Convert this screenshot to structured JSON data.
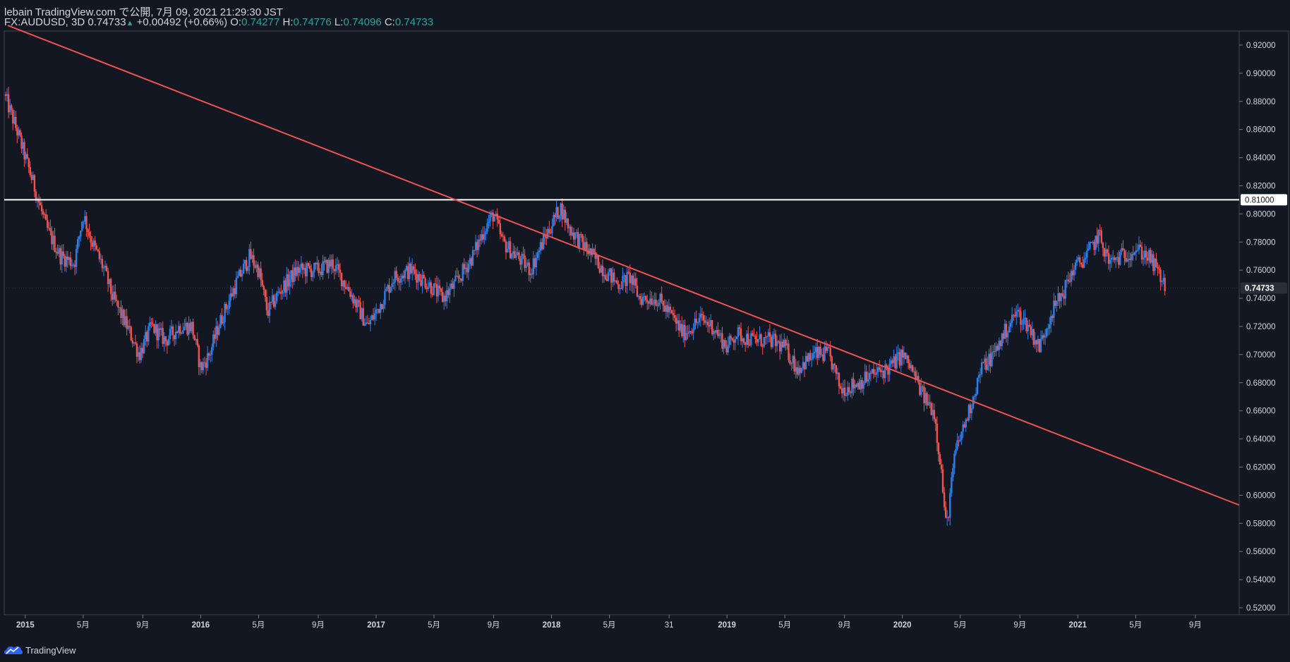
{
  "header": {
    "publisher_line": "lebain TradingView.com で公開, 7月 09, 2021 21:29:30 JST",
    "symbol": "FX:AUDUSD, 3D",
    "last": "0.74733",
    "up_arrow": "▲",
    "change": "+0.00492 (+0.66%)",
    "o_label": "O:",
    "o_value": "0.74277",
    "h_label": "H:",
    "h_value": "0.74776",
    "l_label": "L:",
    "l_value": "0.74096",
    "c_label": "C:",
    "c_value": "0.74733"
  },
  "footer": {
    "brand": "TradingView",
    "logo_icon": "tradingview-cloud-icon"
  },
  "colors": {
    "background": "#131722",
    "up": "#2f7fe8",
    "down": "#ef5350",
    "trendline": "#ef5350",
    "hline": "#ffffff",
    "text": "#d1d4dc"
  },
  "chart_data": {
    "type": "candlestick",
    "title": "FX:AUDUSD, 3D",
    "x_range_years": [
      2014.88,
      2021.92
    ],
    "ylim": [
      0.515,
      0.93
    ],
    "y_ticks": [
      "0.92000",
      "0.90000",
      "0.88000",
      "0.86000",
      "0.84000",
      "0.82000",
      "0.80000",
      "0.78000",
      "0.76000",
      "0.74000",
      "0.72000",
      "0.70000",
      "0.68000",
      "0.66000",
      "0.64000",
      "0.62000",
      "0.60000",
      "0.58000",
      "0.56000",
      "0.54000",
      "0.52000"
    ],
    "x_ticks": [
      {
        "label": "2015",
        "t": 2015.0,
        "bold": true
      },
      {
        "label": "5月",
        "t": 2015.33
      },
      {
        "label": "9月",
        "t": 2015.67
      },
      {
        "label": "2016",
        "t": 2016.0,
        "bold": true
      },
      {
        "label": "5月",
        "t": 2016.33
      },
      {
        "label": "9月",
        "t": 2016.67
      },
      {
        "label": "2017",
        "t": 2017.0,
        "bold": true
      },
      {
        "label": "5月",
        "t": 2017.33
      },
      {
        "label": "9月",
        "t": 2017.67
      },
      {
        "label": "2018",
        "t": 2018.0,
        "bold": true
      },
      {
        "label": "5月",
        "t": 2018.33
      },
      {
        "label": "31",
        "t": 2018.67
      },
      {
        "label": "2019",
        "t": 2019.0,
        "bold": true
      },
      {
        "label": "5月",
        "t": 2019.33
      },
      {
        "label": "9月",
        "t": 2019.67
      },
      {
        "label": "2020",
        "t": 2020.0,
        "bold": true
      },
      {
        "label": "5月",
        "t": 2020.33
      },
      {
        "label": "9月",
        "t": 2020.67
      },
      {
        "label": "2021",
        "t": 2021.0,
        "bold": true
      },
      {
        "label": "5月",
        "t": 2021.33
      },
      {
        "label": "9月",
        "t": 2021.67
      }
    ],
    "price_path": [
      [
        2014.88,
        0.885
      ],
      [
        2014.95,
        0.86
      ],
      [
        2015.05,
        0.82
      ],
      [
        2015.12,
        0.79
      ],
      [
        2015.2,
        0.77
      ],
      [
        2015.28,
        0.765
      ],
      [
        2015.33,
        0.8
      ],
      [
        2015.38,
        0.78
      ],
      [
        2015.45,
        0.76
      ],
      [
        2015.5,
        0.74
      ],
      [
        2015.58,
        0.72
      ],
      [
        2015.65,
        0.7
      ],
      [
        2015.72,
        0.72
      ],
      [
        2015.8,
        0.71
      ],
      [
        2015.88,
        0.72
      ],
      [
        2015.95,
        0.72
      ],
      [
        2016.0,
        0.69
      ],
      [
        2016.05,
        0.7
      ],
      [
        2016.1,
        0.72
      ],
      [
        2016.2,
        0.75
      ],
      [
        2016.28,
        0.77
      ],
      [
        2016.33,
        0.76
      ],
      [
        2016.38,
        0.73
      ],
      [
        2016.45,
        0.745
      ],
      [
        2016.55,
        0.76
      ],
      [
        2016.67,
        0.76
      ],
      [
        2016.75,
        0.765
      ],
      [
        2016.85,
        0.745
      ],
      [
        2016.95,
        0.72
      ],
      [
        2017.0,
        0.73
      ],
      [
        2017.1,
        0.755
      ],
      [
        2017.2,
        0.76
      ],
      [
        2017.3,
        0.75
      ],
      [
        2017.38,
        0.74
      ],
      [
        2017.45,
        0.75
      ],
      [
        2017.55,
        0.77
      ],
      [
        2017.62,
        0.79
      ],
      [
        2017.67,
        0.8
      ],
      [
        2017.72,
        0.78
      ],
      [
        2017.8,
        0.77
      ],
      [
        2017.88,
        0.76
      ],
      [
        2017.95,
        0.78
      ],
      [
        2018.05,
        0.805
      ],
      [
        2018.1,
        0.79
      ],
      [
        2018.2,
        0.775
      ],
      [
        2018.3,
        0.76
      ],
      [
        2018.38,
        0.75
      ],
      [
        2018.45,
        0.755
      ],
      [
        2018.5,
        0.74
      ],
      [
        2018.6,
        0.74
      ],
      [
        2018.67,
        0.73
      ],
      [
        2018.75,
        0.715
      ],
      [
        2018.85,
        0.725
      ],
      [
        2018.92,
        0.72
      ],
      [
        2019.0,
        0.705
      ],
      [
        2019.05,
        0.715
      ],
      [
        2019.15,
        0.71
      ],
      [
        2019.25,
        0.71
      ],
      [
        2019.33,
        0.705
      ],
      [
        2019.4,
        0.69
      ],
      [
        2019.5,
        0.7
      ],
      [
        2019.58,
        0.7
      ],
      [
        2019.65,
        0.675
      ],
      [
        2019.75,
        0.68
      ],
      [
        2019.82,
        0.685
      ],
      [
        2019.92,
        0.69
      ],
      [
        2020.0,
        0.7
      ],
      [
        2020.05,
        0.69
      ],
      [
        2020.12,
        0.67
      ],
      [
        2020.18,
        0.66
      ],
      [
        2020.22,
        0.62
      ],
      [
        2020.25,
        0.575
      ],
      [
        2020.3,
        0.63
      ],
      [
        2020.38,
        0.66
      ],
      [
        2020.45,
        0.69
      ],
      [
        2020.52,
        0.7
      ],
      [
        2020.58,
        0.715
      ],
      [
        2020.65,
        0.73
      ],
      [
        2020.72,
        0.72
      ],
      [
        2020.78,
        0.705
      ],
      [
        2020.85,
        0.73
      ],
      [
        2020.92,
        0.745
      ],
      [
        2020.97,
        0.76
      ],
      [
        2021.05,
        0.77
      ],
      [
        2021.12,
        0.785
      ],
      [
        2021.18,
        0.765
      ],
      [
        2021.25,
        0.77
      ],
      [
        2021.33,
        0.775
      ],
      [
        2021.4,
        0.77
      ],
      [
        2021.45,
        0.76
      ],
      [
        2021.5,
        0.7473
      ]
    ],
    "horizontal_line": {
      "price": 0.81,
      "label": "0.81000",
      "color": "#ffffff"
    },
    "trendline": {
      "start": [
        2014.9,
        0.934
      ],
      "end": [
        2021.92,
        0.593
      ],
      "color": "#ef5350"
    },
    "last_price": {
      "price": 0.74733,
      "label": "0.74733"
    }
  }
}
